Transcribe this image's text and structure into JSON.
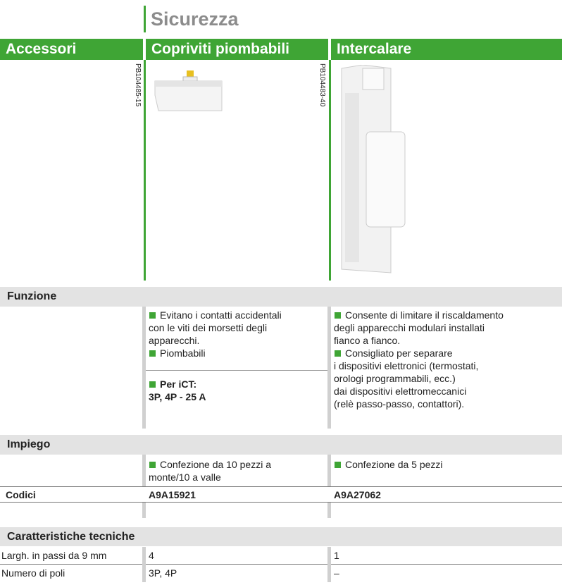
{
  "header": {
    "title": "Sicurezza",
    "columns": [
      "Accessori",
      "Copriviti piombabili",
      "Intercalare"
    ]
  },
  "image_codes": [
    "PB104485-15",
    "PB104483-40"
  ],
  "funzione": {
    "label": "Funzione",
    "col2": [
      "Evitano i contatti accidentali",
      "con le viti dei morsetti degli",
      "apparecchi.",
      "Piombabili"
    ],
    "col2_note": [
      "Per iCT:",
      "3P, 4P - 25 A"
    ],
    "col3": [
      "Consente di limitare il riscaldamento",
      "degli apparecchi modulari installati",
      "fianco a fianco.",
      "Consigliato per separare",
      "i dispositivi elettronici (termostati,",
      "orologi programmabili, ecc.)",
      "dai dispositivi elettromeccanici",
      "(relè passo-passo, contattori)."
    ]
  },
  "impiego": {
    "label": "Impiego",
    "col2": [
      "Confezione da 10 pezzi a",
      "monte/10 a valle"
    ],
    "col3": [
      "Confezione da 5 pezzi"
    ]
  },
  "codici": {
    "label": "Codici",
    "values": [
      "A9A15921",
      "A9A27062"
    ]
  },
  "caratteristiche": {
    "label": "Caratteristiche tecniche",
    "rows": [
      [
        "Largh. in passi da 9 mm",
        "4",
        "1"
      ],
      [
        "Numero di poli",
        "3P, 4P",
        "–"
      ]
    ]
  }
}
